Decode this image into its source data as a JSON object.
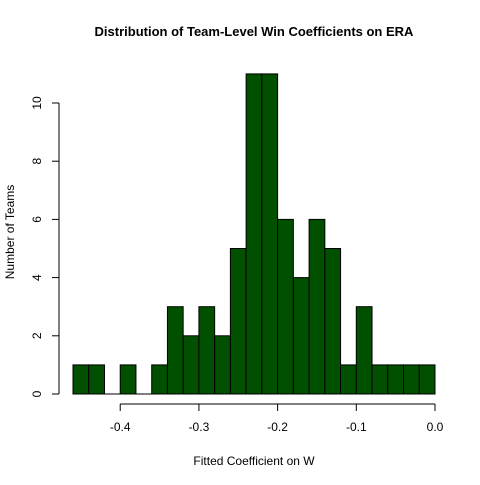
{
  "chart_data": {
    "type": "bar",
    "title": "Distribution of Team-Level Win Coefficients on ERA",
    "xlabel": "Fitted Coefficient on W",
    "ylabel": "Number of Teams",
    "bin_width": 0.02,
    "bin_starts": [
      -0.46,
      -0.44,
      -0.42,
      -0.4,
      -0.38,
      -0.36,
      -0.34,
      -0.32,
      -0.3,
      -0.28,
      -0.26,
      -0.24,
      -0.22,
      -0.2,
      -0.18,
      -0.16,
      -0.14,
      -0.12,
      -0.1,
      -0.08,
      -0.06,
      -0.04,
      -0.02
    ],
    "values": [
      1,
      1,
      0,
      1,
      0,
      1,
      3,
      2,
      3,
      2,
      5,
      11,
      11,
      6,
      4,
      6,
      5,
      1,
      3,
      1,
      1,
      1,
      1
    ],
    "xlim": [
      -0.46,
      0.0
    ],
    "ylim": [
      0,
      11
    ],
    "x_ticks": [
      -0.4,
      -0.3,
      -0.2,
      -0.1,
      0.0
    ],
    "x_tick_labels": [
      "-0.4",
      "-0.3",
      "-0.2",
      "-0.1",
      "0.0"
    ],
    "y_ticks": [
      0,
      2,
      4,
      6,
      8,
      10
    ],
    "y_tick_labels": [
      "0",
      "2",
      "4",
      "6",
      "8",
      "10"
    ],
    "bar_color": "#005000",
    "bar_edge_color": "#000000",
    "grid": false,
    "legend": "none"
  }
}
